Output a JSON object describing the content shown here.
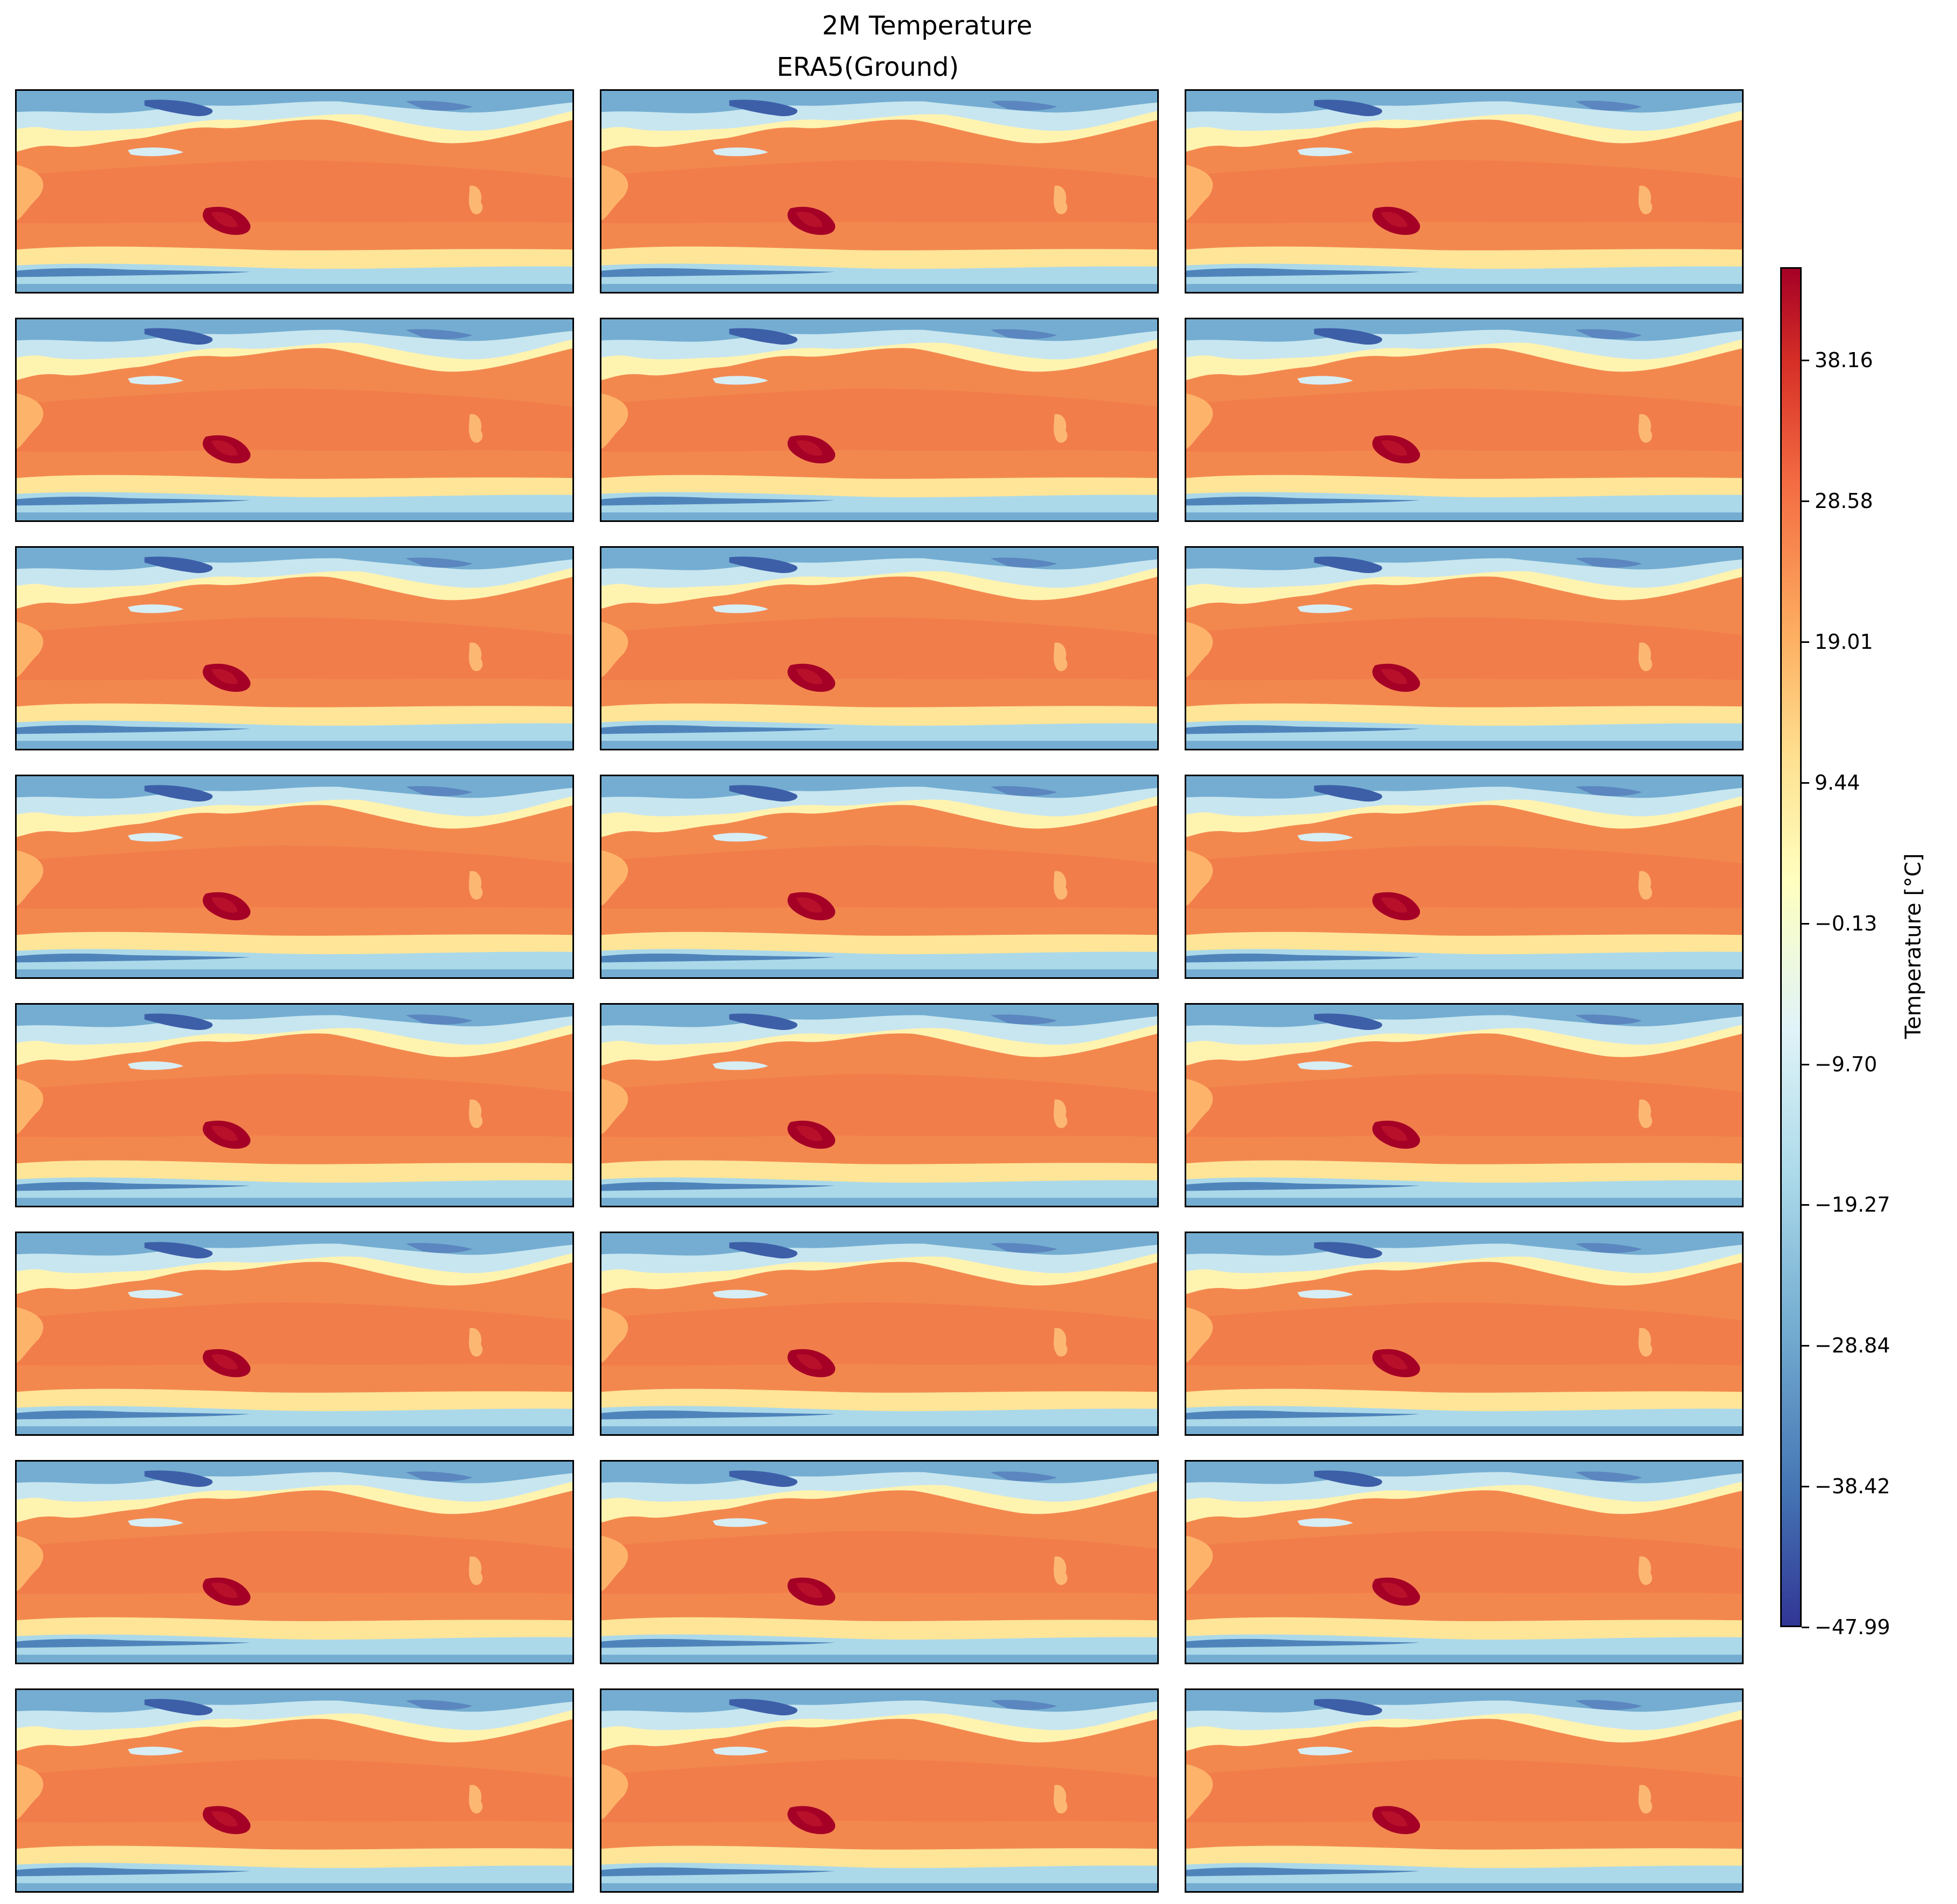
{
  "title": "2M Temperature",
  "subtitle": "ERA5(Ground)",
  "colorbar": {
    "label": "Temperature [°C]",
    "ticks": [
      "38.16",
      "28.58",
      "19.01",
      "9.44",
      "−0.13",
      "−9.70",
      "−19.27",
      "−28.84",
      "−38.42",
      "−47.99"
    ],
    "colormap": "RdYlBu_r",
    "colors": [
      "#313695",
      "#4575b4",
      "#74add1",
      "#abd9e9",
      "#e0f3f8",
      "#ffffbf",
      "#fee090",
      "#fdae61",
      "#f46d43",
      "#d73027",
      "#a50026"
    ]
  },
  "chart_data": {
    "type": "heatmap",
    "title": "2M Temperature",
    "subtitle": "ERA5(Ground)",
    "rows": 8,
    "cols": 3,
    "panel_count": 24,
    "xticks": "none",
    "yticks": "none",
    "vlim": [
      -47.99,
      44.5
    ],
    "colorbar_label": "Temperature [°C]",
    "colorbar_ticks": [
      38.16,
      28.58,
      19.01,
      9.44,
      -0.13,
      -9.7,
      -19.27,
      -28.84,
      -38.42,
      -47.99
    ]
  }
}
